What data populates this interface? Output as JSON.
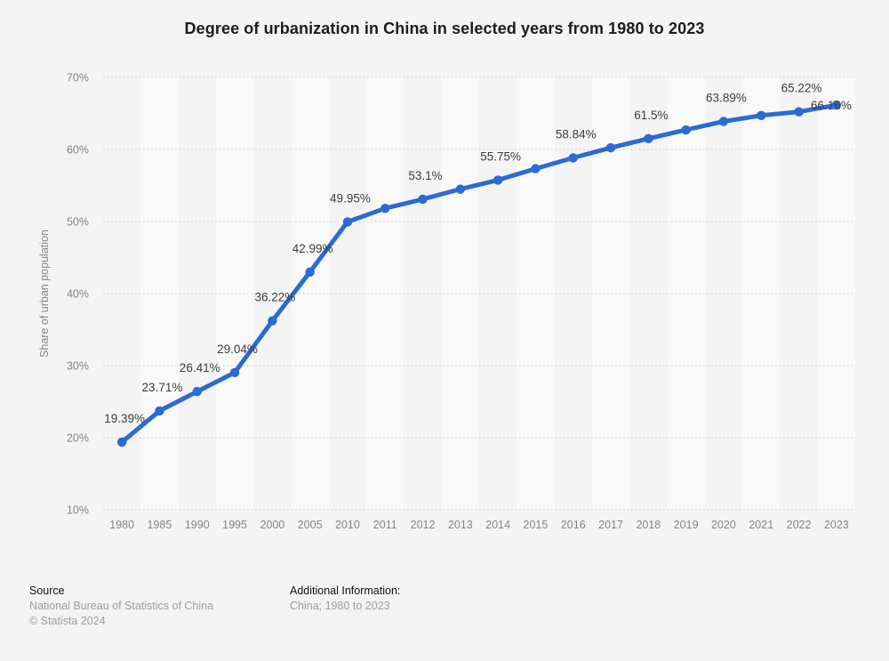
{
  "title": "Degree of urbanization in China in selected years from 1980 to 2023",
  "chart_data": {
    "type": "line",
    "title": "Degree of urbanization in China in selected years from 1980 to 2023",
    "xlabel": "",
    "ylabel": "Share of urban population",
    "ylim": [
      10,
      70
    ],
    "grid": "horizontal-dotted",
    "legend": "none",
    "plot_band_alternation": true,
    "categories": [
      "1980",
      "1985",
      "1990",
      "1995",
      "2000",
      "2005",
      "2010",
      "2011",
      "2012",
      "2013",
      "2014",
      "2015",
      "2016",
      "2017",
      "2018",
      "2019",
      "2020",
      "2021",
      "2022",
      "2023"
    ],
    "values": [
      19.39,
      23.71,
      26.41,
      29.04,
      36.22,
      42.99,
      49.95,
      51.83,
      53.1,
      54.49,
      55.75,
      57.33,
      58.84,
      60.24,
      61.5,
      62.71,
      63.89,
      64.72,
      65.22,
      66.16
    ],
    "point_labels": [
      "19.39%",
      "23.71%",
      "26.41%",
      "29.04%",
      "36.22%",
      "42.99%",
      "49.95%",
      null,
      "53.1%",
      null,
      "55.75%",
      null,
      "58.84%",
      null,
      "61.5%",
      null,
      "63.89%",
      null,
      "65.22%",
      "66.16%"
    ],
    "yticks": [
      {
        "value": 70,
        "label": "70%"
      },
      {
        "value": 60,
        "label": "60%"
      },
      {
        "value": 50,
        "label": "50%"
      },
      {
        "value": 40,
        "label": "40%"
      },
      {
        "value": 30,
        "label": "30%"
      },
      {
        "value": 20,
        "label": "20%"
      },
      {
        "value": 10,
        "label": "10%"
      }
    ]
  },
  "colors": {
    "background": "#f4f4f4",
    "band_light": "#f9f9f9",
    "gridline": "#cbcbcb",
    "series_line": "#2b6bd3",
    "title_text": "#1d1d1d",
    "data_label_text": "#3d3d3d",
    "axis_text": "#858585",
    "footer_heading_text": "#111111",
    "footer_secondary_text": "#9e9e9e"
  },
  "footer": {
    "source_heading": "Source",
    "source_line1": "National Bureau of Statistics of China",
    "source_line2": "© Statista 2024",
    "additional_heading": "Additional Information:",
    "additional_line1": "China; 1980 to 2023"
  }
}
